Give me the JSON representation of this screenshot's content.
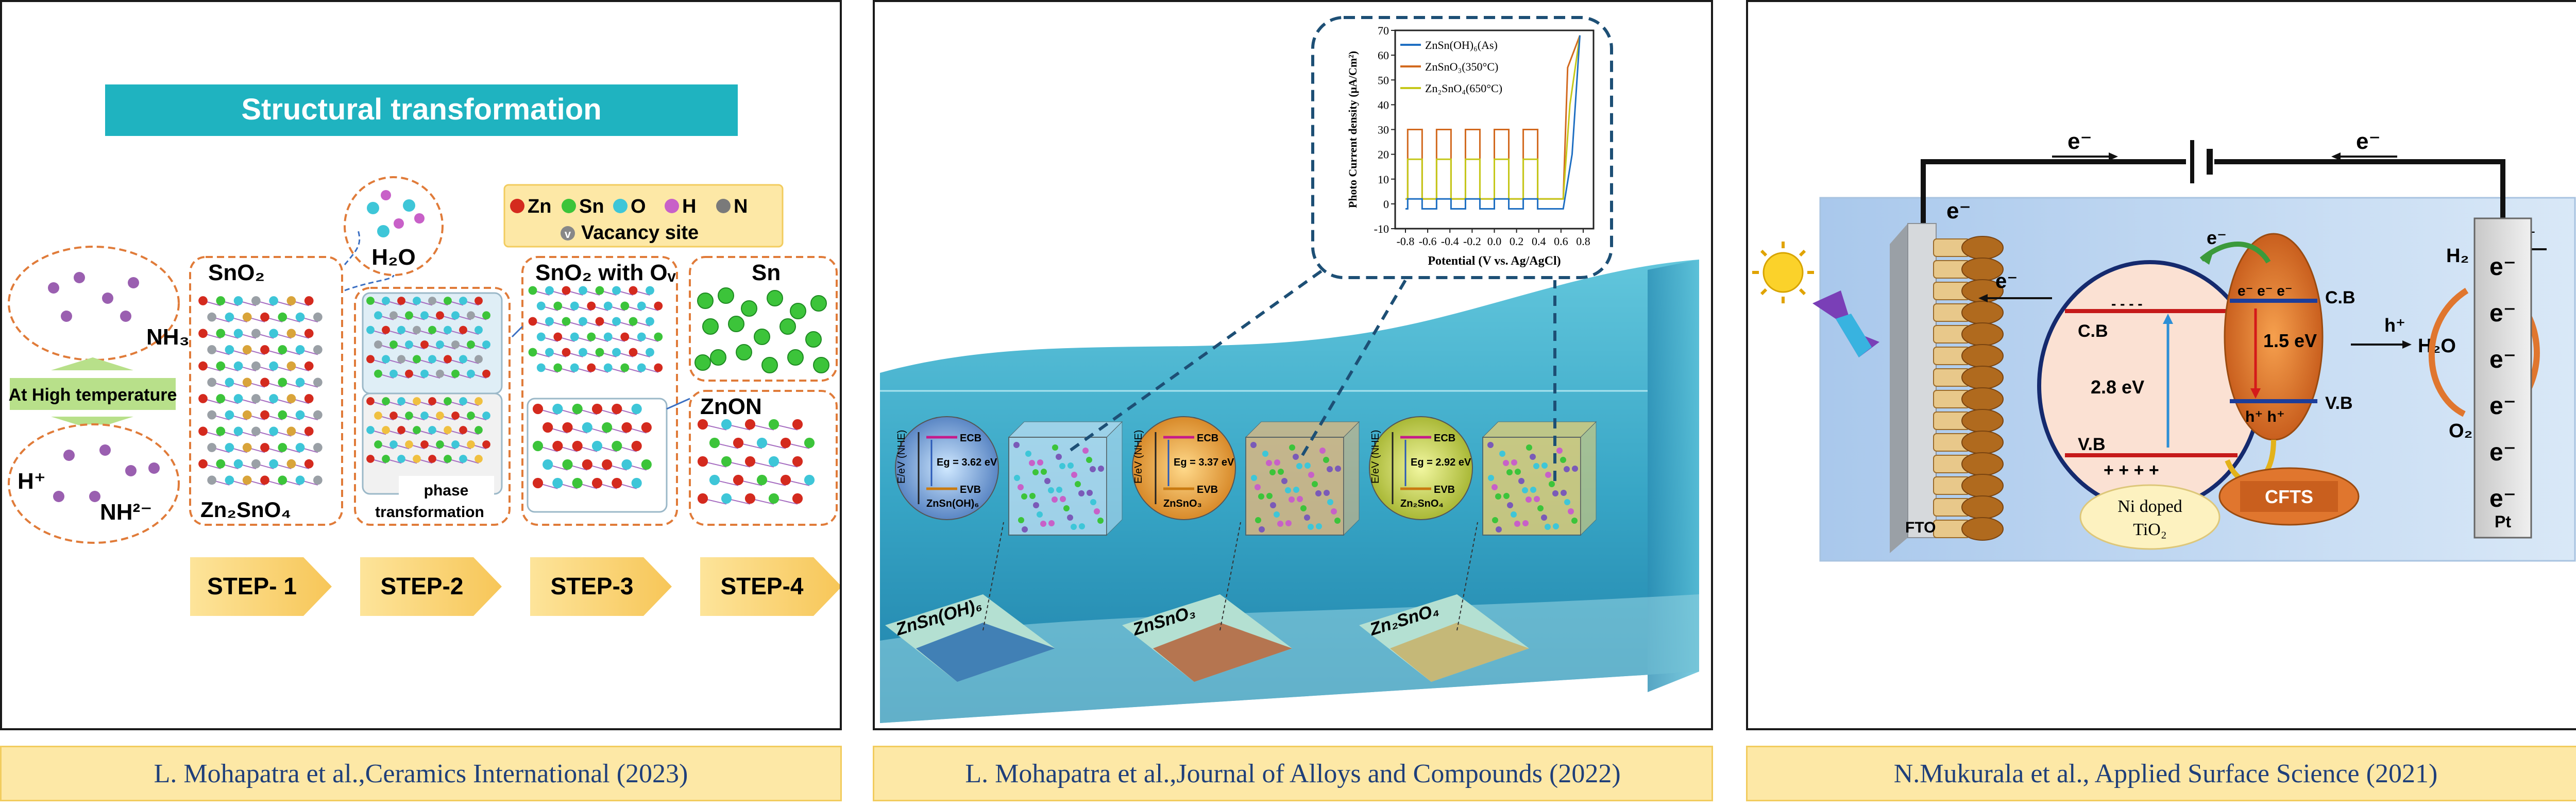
{
  "captions": {
    "left": "L. Mohapatra et al.,Ceramics International (2023)",
    "middle": "L. Mohapatra et al.,Journal of Alloys and Compounds (2022)",
    "right": "N.Mukurala et al., Applied Surface Science (2021)"
  },
  "left_panel": {
    "banner": "Structural transformation",
    "h2o": "H₂O",
    "sno2": "SnO₂",
    "sno2_ov": "SnO₂ with Oᵥ",
    "sn": "Sn",
    "znon": "ZnON",
    "nh3": "NH₃",
    "high_temp": "At High temperature",
    "h_plus": "H⁺",
    "nh2": "NH²⁻",
    "zn2sno4": "Zn₂SnO₄",
    "phase_1": "phase",
    "phase_2": "transformation",
    "legend": [
      {
        "label": "Zn",
        "color": "#d42a1e"
      },
      {
        "label": "Sn",
        "color": "#3cc43a"
      },
      {
        "label": "O",
        "color": "#3ec6d8"
      },
      {
        "label": "H",
        "color": "#c860c8"
      },
      {
        "label": "N",
        "color": "#7a7a7a"
      }
    ],
    "vacancy_symbol": "v",
    "vacancy_label": "Vacancy site",
    "steps": [
      "STEP- 1",
      "STEP-2",
      "STEP-3",
      "STEP-4"
    ]
  },
  "middle_panel": {
    "inset_chart": {
      "ylabel": "Photo Current density (μA/Cm²)",
      "xlabel": "Potential (V vs. Ag/AgCl)",
      "yticks": [
        "70",
        "60",
        "50",
        "40",
        "30",
        "20",
        "10",
        "0",
        "-10"
      ],
      "xticks": [
        "-0.8",
        "-0.6",
        "-0.4",
        "-0.2",
        "0.0",
        "0.2",
        "0.4",
        "0.6",
        "0.8"
      ],
      "legend": [
        "ZnSn(OH)₆(As)",
        "ZnSnO₃(350°C)",
        "Zn₂SnO₄(650°C)"
      ]
    },
    "band_diagrams": [
      {
        "gap": "Eg = 3.62 eV",
        "name": "ZnSn(OH)₆"
      },
      {
        "gap": "Eg = 3.37 eV",
        "name": "ZnSnO₃"
      },
      {
        "gap": "Eg = 2.92 eV",
        "name": "Zn₂SnO₄"
      }
    ],
    "band_axis": "E/eV (NHE)",
    "ecb": "ECB",
    "evb": "EVB",
    "plates": [
      "ZnSn(OH)₆",
      "ZnSnO₃",
      "Zn₂SnO₄"
    ]
  },
  "right_panel": {
    "e_left": "e⁻",
    "e_right": "e⁻",
    "e_fto": "e⁻",
    "e_arrow1": "e⁻",
    "e_green": "e⁻",
    "e_to_pt": "e⁻",
    "cb_left": "C.B",
    "vb_left": "V.B",
    "gap_left": "2.8 eV",
    "holes": "+ + + +",
    "cb_right": "C.B",
    "vb_right": "V.B",
    "gap_right": "1.5 eV",
    "e_cfts": "e⁻ e⁻ e⁻",
    "h_cfts": "h⁺ h⁺",
    "h_plus_1": "h⁺",
    "h2o": "H₂O",
    "h_plus_2": "H⁺",
    "h2": "H₂",
    "o2": "O₂",
    "ni_tio2_1": "Ni doped",
    "ni_tio2_2": "TiO₂",
    "cfts": "CFTS",
    "fto": "FTO",
    "pt": "Pt",
    "pt_electrons": [
      "e⁻",
      "e⁻",
      "e⁻",
      "e⁻",
      "e⁻",
      "e⁻"
    ]
  }
}
